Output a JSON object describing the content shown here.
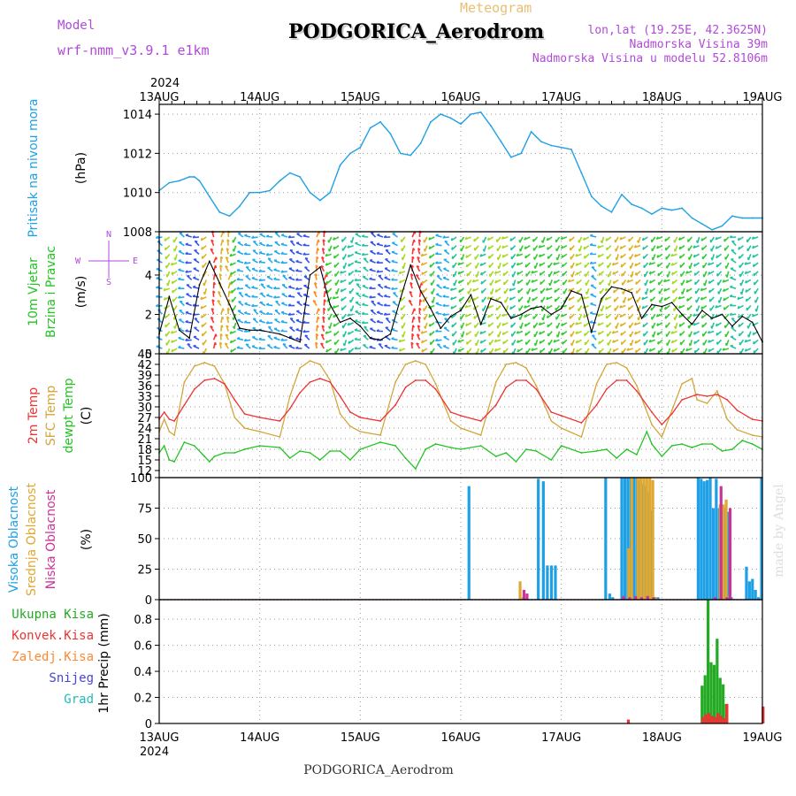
{
  "header": {
    "app_label": "Meteogram",
    "model_label": "Model",
    "model_name": "wrf-nmm_v3.9.1 e1km",
    "station": "PODGORICA_Aerodrom",
    "lonlat": "lon,lat (19.25E, 42.3625N)",
    "elev": "Nadmorska Visina 39m",
    "elev_model": "Nadmorska Visina u modelu 52.8106m",
    "year_top": "2024",
    "year_bottom": "2024",
    "footer_station": "PODGORICA_Aerodrom",
    "credit": "made by Angel",
    "wind_compass": [
      "N",
      "S",
      "W",
      "E"
    ],
    "x_ticks": [
      "13AUG",
      "14AUG",
      "15AUG",
      "16AUG",
      "17AUG",
      "18AUG",
      "19AUG"
    ]
  },
  "colors": {
    "pressure": "#1ea0e6",
    "wind_speed": "#000000",
    "temp2m": "#ee3333",
    "sfc_temp": "#d4a53a",
    "dewpt": "#22c422",
    "cloud_high": "#1ea0e6",
    "cloud_mid": "#e0a830",
    "cloud_low": "#cc3399",
    "precip_total": "#22aa22",
    "precip_conv": "#ee3333",
    "precip_frozen": "#ff8833",
    "snow": "#4444dd",
    "hail": "#22bbbb",
    "label_purple": "#b04ad8",
    "label_gold": "#e8c070"
  },
  "chart_data": [
    {
      "type": "line",
      "panel": "pressure",
      "ylabel": [
        "Pritisak na nivou mora",
        "(hPa)"
      ],
      "ylim": [
        1008,
        1014.5
      ],
      "yticks": [
        1008,
        1010,
        1012,
        1014
      ],
      "xlim": [
        0,
        6
      ],
      "series": [
        {
          "name": "Pritisak na nivou mora",
          "x": [
            0,
            0.1,
            0.2,
            0.3,
            0.35,
            0.4,
            0.5,
            0.6,
            0.7,
            0.8,
            0.9,
            1.0,
            1.1,
            1.2,
            1.3,
            1.4,
            1.5,
            1.6,
            1.7,
            1.8,
            1.9,
            2.0,
            2.1,
            2.2,
            2.3,
            2.4,
            2.5,
            2.6,
            2.7,
            2.8,
            2.9,
            3.0,
            3.1,
            3.2,
            3.3,
            3.4,
            3.5,
            3.6,
            3.7,
            3.8,
            3.9,
            4.0,
            4.1,
            4.2,
            4.3,
            4.4,
            4.5,
            4.6,
            4.7,
            4.8,
            4.9,
            5.0,
            5.1,
            5.2,
            5.3,
            5.4,
            5.5,
            5.6,
            5.7,
            5.8,
            5.9,
            6.0
          ],
          "y": [
            1010.1,
            1010.5,
            1010.6,
            1010.8,
            1010.8,
            1010.6,
            1009.8,
            1009.0,
            1008.8,
            1009.3,
            1010.0,
            1010.0,
            1010.1,
            1010.6,
            1011.0,
            1010.8,
            1010.0,
            1009.6,
            1010.0,
            1011.4,
            1012.0,
            1012.3,
            1013.3,
            1013.6,
            1013.0,
            1012.0,
            1011.9,
            1012.5,
            1013.6,
            1014.0,
            1013.8,
            1013.5,
            1014.0,
            1014.1,
            1013.4,
            1012.6,
            1011.8,
            1012.0,
            1013.1,
            1012.6,
            1012.4,
            1012.3,
            1012.2,
            1011.0,
            1009.8,
            1009.3,
            1009.0,
            1009.9,
            1009.4,
            1009.2,
            1008.9,
            1009.2,
            1009.1,
            1009.2,
            1008.7,
            1008.4,
            1008.1,
            1008.3,
            1008.8,
            1008.7,
            1008.7,
            1008.7
          ]
        }
      ]
    },
    {
      "type": "line",
      "panel": "wind",
      "ylabel": [
        "10m Vjetar",
        "Brzina i Pravac",
        "(m/s)"
      ],
      "ylim": [
        0,
        6.2
      ],
      "yticks": [
        0,
        2,
        4
      ],
      "xlim": [
        0,
        6
      ],
      "series": [
        {
          "name": "10m Vjetar",
          "x": [
            0,
            0.1,
            0.2,
            0.3,
            0.4,
            0.5,
            0.6,
            0.7,
            0.8,
            0.9,
            1.0,
            1.1,
            1.2,
            1.3,
            1.4,
            1.5,
            1.6,
            1.7,
            1.8,
            1.9,
            2.0,
            2.1,
            2.2,
            2.3,
            2.4,
            2.5,
            2.6,
            2.7,
            2.8,
            2.9,
            3.0,
            3.1,
            3.2,
            3.3,
            3.4,
            3.5,
            3.6,
            3.7,
            3.8,
            3.9,
            4.0,
            4.1,
            4.2,
            4.3,
            4.4,
            4.5,
            4.6,
            4.7,
            4.8,
            4.9,
            5.0,
            5.1,
            5.2,
            5.3,
            5.4,
            5.5,
            5.6,
            5.7,
            5.8,
            5.9,
            6.0
          ],
          "y": [
            1.0,
            2.9,
            1.2,
            0.8,
            3.5,
            4.7,
            3.6,
            2.5,
            1.3,
            1.2,
            1.2,
            1.1,
            1.0,
            0.8,
            0.6,
            4.0,
            4.4,
            2.5,
            1.6,
            1.8,
            1.4,
            0.8,
            0.7,
            1.0,
            2.8,
            4.5,
            3.2,
            2.3,
            1.3,
            1.9,
            2.2,
            3.0,
            1.5,
            2.8,
            2.6,
            1.8,
            2.0,
            2.3,
            2.4,
            2.0,
            2.3,
            3.2,
            3.0,
            1.1,
            2.8,
            3.4,
            3.3,
            3.1,
            1.8,
            2.5,
            2.4,
            2.6,
            2.0,
            1.5,
            2.2,
            1.8,
            2.0,
            1.4,
            1.9,
            1.6,
            0.6
          ]
        }
      ]
    },
    {
      "type": "line",
      "panel": "temperature",
      "ylabel": [
        "2m Temp",
        "SFC Temp",
        "dewpt Temp",
        "(C)"
      ],
      "ylim": [
        10,
        45
      ],
      "yticks": [
        12,
        15,
        18,
        21,
        24,
        27,
        30,
        33,
        36,
        39,
        42,
        45
      ],
      "xlim": [
        0,
        6
      ],
      "series": [
        {
          "name": "2m Temp",
          "x": [
            0,
            0.05,
            0.1,
            0.15,
            0.25,
            0.35,
            0.45,
            0.55,
            0.65,
            0.75,
            0.85,
            1.0,
            1.2,
            1.3,
            1.4,
            1.5,
            1.6,
            1.7,
            1.8,
            1.9,
            2.0,
            2.2,
            2.35,
            2.45,
            2.55,
            2.65,
            2.75,
            2.9,
            3.0,
            3.2,
            3.35,
            3.45,
            3.55,
            3.65,
            3.75,
            3.9,
            4.0,
            4.2,
            4.35,
            4.45,
            4.55,
            4.65,
            4.75,
            4.9,
            5.0,
            5.1,
            5.2,
            5.35,
            5.45,
            5.55,
            5.65,
            5.75,
            5.9,
            6.0
          ],
          "y": [
            26.5,
            28.5,
            26.5,
            26.0,
            30.5,
            35.0,
            37.5,
            38.0,
            36.5,
            32.0,
            28.0,
            27.0,
            26.0,
            29.5,
            34.0,
            37.0,
            38.0,
            37.0,
            33.0,
            28.5,
            27.0,
            26.0,
            30.5,
            35.5,
            37.5,
            37.5,
            35.0,
            28.5,
            27.5,
            26.0,
            30.5,
            35.5,
            37.5,
            37.5,
            35.0,
            28.5,
            27.5,
            25.5,
            30.5,
            35.0,
            37.5,
            37.5,
            34.5,
            28.5,
            25.0,
            28.0,
            32.0,
            33.5,
            33.0,
            33.5,
            32.0,
            29.0,
            26.5,
            26.0
          ]
        },
        {
          "name": "SFC Temp",
          "x": [
            0,
            0.05,
            0.1,
            0.15,
            0.25,
            0.35,
            0.45,
            0.55,
            0.65,
            0.75,
            0.85,
            1.0,
            1.2,
            1.3,
            1.4,
            1.5,
            1.6,
            1.7,
            1.8,
            1.9,
            2.0,
            2.2,
            2.35,
            2.45,
            2.55,
            2.65,
            2.75,
            2.9,
            3.0,
            3.2,
            3.35,
            3.45,
            3.55,
            3.65,
            3.75,
            3.9,
            4.0,
            4.2,
            4.35,
            4.45,
            4.55,
            4.65,
            4.75,
            4.9,
            5.0,
            5.1,
            5.2,
            5.3,
            5.35,
            5.45,
            5.55,
            5.65,
            5.75,
            5.9,
            6.0
          ],
          "y": [
            23.0,
            26.5,
            23.0,
            22.0,
            37.0,
            41.5,
            42.5,
            41.5,
            36.5,
            27.0,
            24.0,
            23.0,
            21.5,
            33.0,
            41.0,
            43.0,
            42.0,
            37.5,
            28.0,
            24.5,
            23.0,
            22.0,
            37.0,
            42.0,
            43.0,
            42.0,
            36.5,
            26.0,
            24.0,
            22.0,
            37.0,
            42.0,
            42.5,
            41.0,
            36.0,
            26.0,
            24.0,
            21.5,
            36.5,
            42.0,
            42.5,
            41.0,
            36.0,
            25.0,
            21.5,
            29.0,
            36.5,
            38.0,
            32.0,
            31.0,
            34.5,
            26.5,
            23.5,
            22.0,
            21.5
          ]
        },
        {
          "name": "dewpt Temp",
          "x": [
            0,
            0.05,
            0.1,
            0.15,
            0.25,
            0.35,
            0.45,
            0.5,
            0.55,
            0.65,
            0.75,
            0.85,
            1.0,
            1.2,
            1.3,
            1.4,
            1.5,
            1.6,
            1.7,
            1.8,
            1.9,
            2.0,
            2.2,
            2.35,
            2.45,
            2.55,
            2.65,
            2.75,
            2.9,
            3.0,
            3.2,
            3.35,
            3.45,
            3.55,
            3.65,
            3.75,
            3.9,
            4.0,
            4.2,
            4.35,
            4.45,
            4.55,
            4.65,
            4.75,
            4.85,
            4.9,
            5.0,
            5.1,
            5.2,
            5.3,
            5.4,
            5.5,
            5.6,
            5.7,
            5.8,
            5.9,
            6.0
          ],
          "y": [
            17.0,
            19.0,
            15.0,
            14.5,
            20.0,
            19.0,
            16.0,
            14.5,
            16.0,
            17.0,
            17.0,
            18.0,
            19.0,
            18.5,
            15.5,
            17.5,
            17.0,
            15.0,
            17.5,
            17.5,
            15.0,
            18.0,
            20.0,
            19.0,
            15.5,
            12.5,
            18.0,
            19.5,
            18.5,
            18.0,
            19.0,
            16.0,
            17.0,
            14.5,
            18.0,
            17.5,
            15.0,
            19.0,
            17.0,
            17.5,
            18.0,
            15.5,
            18.0,
            16.5,
            23.0,
            19.5,
            16.0,
            19.0,
            19.5,
            18.5,
            19.5,
            19.5,
            17.5,
            18.0,
            20.5,
            19.5,
            18.0
          ]
        }
      ]
    },
    {
      "type": "bar",
      "panel": "cloud",
      "ylabel": [
        "Visoka Oblacnost",
        "Srednja Oblacnost",
        "Niska Oblacnost",
        "(%)"
      ],
      "ylim": [
        0,
        100
      ],
      "yticks": [
        0,
        25,
        50,
        75,
        100
      ],
      "xlim": [
        0,
        6
      ],
      "series": [
        {
          "name": "Visoka Oblacnost",
          "x": [
            3.09,
            3.78,
            3.83,
            3.87,
            3.91,
            3.95,
            4.45,
            4.49,
            4.52,
            4.61,
            4.64,
            4.67,
            4.7,
            4.73,
            4.76,
            4.79,
            4.82,
            4.85,
            4.88,
            4.91,
            4.94,
            4.97,
            5.37,
            5.4,
            5.43,
            5.46,
            5.49,
            5.52,
            5.55,
            5.58,
            5.61,
            5.64,
            5.67,
            5.7,
            5.85,
            5.88,
            5.91,
            5.94,
            5.97,
            6.0
          ],
          "y": [
            93,
            99,
            97,
            28,
            28,
            28,
            100,
            5,
            2,
            100,
            100,
            100,
            100,
            100,
            100,
            98,
            95,
            93,
            88,
            73,
            2,
            2,
            100,
            99,
            97,
            98,
            100,
            75,
            99,
            75,
            75,
            75,
            72,
            2,
            27,
            15,
            17,
            8,
            2,
            100
          ]
        },
        {
          "name": "Srednja Oblacnost",
          "x": [
            3.59,
            3.62,
            4.67,
            4.7,
            4.76,
            4.79,
            4.82,
            4.85,
            4.88,
            4.91,
            4.94,
            5.58,
            5.61,
            5.64,
            5.67
          ],
          "y": [
            15,
            2,
            42,
            100,
            100,
            100,
            100,
            100,
            100,
            98,
            2,
            78,
            78,
            82,
            3
          ]
        },
        {
          "name": "Niska Oblacnost",
          "x": [
            3.62,
            3.65,
            4.61,
            4.67,
            4.73,
            4.79,
            4.85,
            4.91,
            5.52,
            5.58,
            5.64,
            5.67
          ],
          "y": [
            8,
            5,
            3,
            2,
            3,
            2,
            3,
            2,
            2,
            93,
            2,
            75
          ]
        }
      ]
    },
    {
      "type": "bar",
      "panel": "precip",
      "ylabel": [
        "1hr Precip (mm)"
      ],
      "legend": [
        "Ukupna Kisa",
        "Konvek.Kisa",
        "Zaledj.Kisa",
        "Snijeg",
        "Grad"
      ],
      "ylim": [
        0,
        0.95
      ],
      "yticks": [
        0,
        0.2,
        0.4,
        0.6,
        0.8
      ],
      "xlim": [
        0,
        6
      ],
      "series": [
        {
          "name": "Ukupna Kisa",
          "x": [
            5.4,
            5.43,
            5.46,
            5.49,
            5.52,
            5.55,
            5.58,
            5.61,
            5.64
          ],
          "y": [
            0.29,
            0.37,
            0.95,
            0.47,
            0.45,
            0.65,
            0.35,
            0.3,
            0.15
          ]
        },
        {
          "name": "Konvek.Kisa",
          "x": [
            4.66,
            5.4,
            5.43,
            5.46,
            5.49,
            5.52,
            5.55,
            5.58,
            5.61,
            5.64,
            6.0
          ],
          "y": [
            0.03,
            0.05,
            0.07,
            0.08,
            0.06,
            0.05,
            0.08,
            0.06,
            0.04,
            0.15,
            0.13
          ]
        }
      ]
    }
  ]
}
